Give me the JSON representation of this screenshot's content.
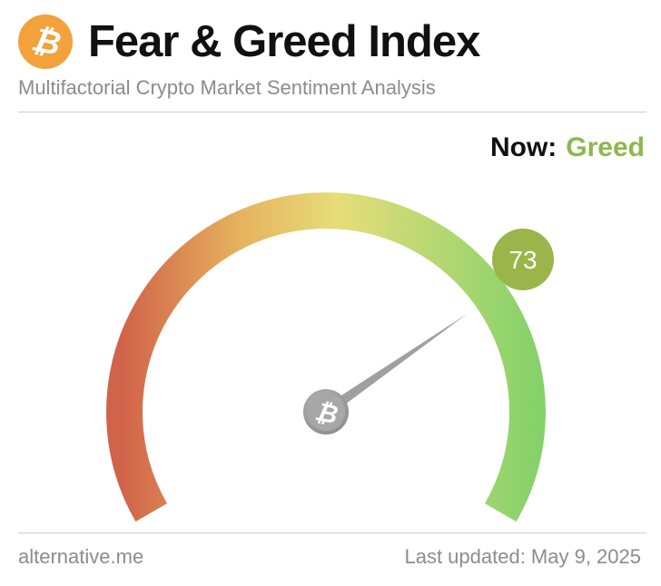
{
  "header": {
    "title": "Fear & Greed Index",
    "subtitle": "Multifactorial Crypto Market Sentiment Analysis",
    "logo_icon": "bitcoin-icon",
    "logo_color": "#f2a13b"
  },
  "status": {
    "label": "Now:",
    "classification": "Greed",
    "classification_color": "#8cb84e"
  },
  "gauge": {
    "value": 73,
    "value_display": "73",
    "min": 0,
    "max": 100,
    "badge_color": "#9bb54a",
    "gradient_colors": [
      "#d1634a",
      "#e6b25d",
      "#e6dd7a",
      "#86d26a"
    ],
    "center_icon": "bitcoin-icon"
  },
  "footer": {
    "source": "alternative.me",
    "last_updated": "Last updated: May 9, 2025"
  }
}
